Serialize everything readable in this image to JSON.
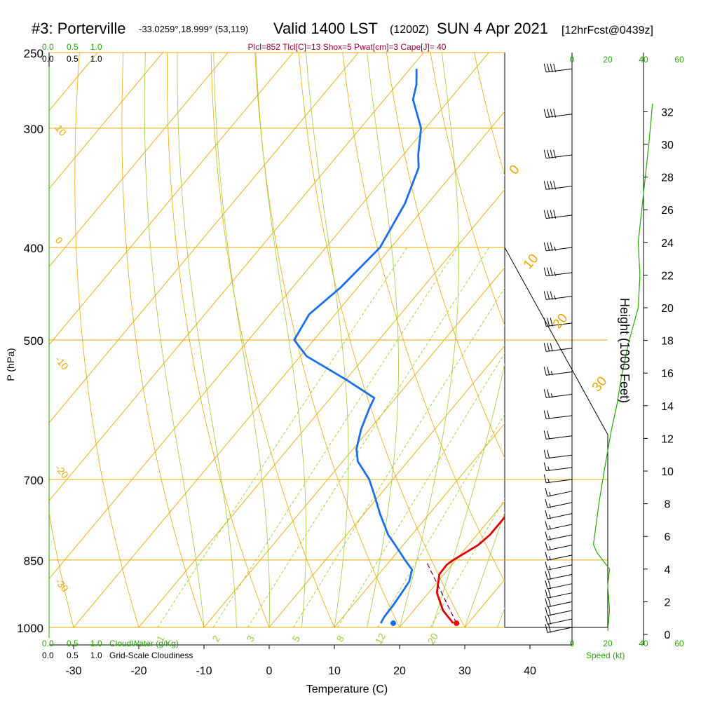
{
  "header": {
    "station": "#3: Porterville",
    "coords": "-33.0259°,18.999° (53,119)",
    "valid": "Valid 1400 LST",
    "zulu": "(1200Z)",
    "date": "SUN 4 Apr 2021",
    "forecast": "[12hrFcst@0439z]"
  },
  "params_line": "Plcl=852 Tlcl[C]=13 Shox=5 Pwat[cm]=3 Cape[J]= 40",
  "colors": {
    "isotherm": "#e8a800",
    "mixing_ratio": "#99cc33",
    "temperature": "#dd0000",
    "dewpoint": "#1a6fe8",
    "parcel": "#6a0030",
    "title_accent": "#990033",
    "scale_green": "#22aa00"
  },
  "chart_data": {
    "type": "line",
    "title": "#3: Porterville",
    "xlabel": "Temperature (C)",
    "ylabel": "P (hPa)",
    "right_axis_label": "Height (1000 Feet)",
    "x_ticks": [
      "-30",
      "-20",
      "-10",
      "0",
      "10",
      "20",
      "30",
      "40"
    ],
    "pressure_levels": [
      "250",
      "300",
      "400",
      "500",
      "700",
      "850",
      "1000"
    ],
    "height_ticks": [
      "0",
      "2",
      "4",
      "6",
      "8",
      "10",
      "12",
      "14",
      "16",
      "18",
      "20",
      "22",
      "24",
      "26",
      "28",
      "30",
      "32"
    ],
    "cloud_scale": [
      "0.0",
      "0.5",
      "1.0"
    ],
    "cloud_water_label": "CloudWater (g/Kg)",
    "cloudiness_label": "Grid-Scale Cloudiness",
    "speed_ticks": [
      "0",
      "20",
      "40",
      "60"
    ],
    "speed_label": "Speed (kt)",
    "mixing_ratio_labels": [
      "1",
      "2",
      "3",
      "5",
      "8",
      "12",
      "20"
    ],
    "isotherm_labels_left": [
      "10",
      "0",
      "-10",
      "-20",
      "-30"
    ],
    "isotherm_labels_right": [
      "0",
      "10",
      "20",
      "30"
    ],
    "series": [
      {
        "name": "Temperature",
        "points": [
          {
            "p": 990,
            "t": 27.7
          },
          {
            "p": 960,
            "t": 24.5
          },
          {
            "p": 920,
            "t": 21.3
          },
          {
            "p": 880,
            "t": 19.3
          },
          {
            "p": 860,
            "t": 19.2
          },
          {
            "p": 850,
            "t": 19.6
          },
          {
            "p": 820,
            "t": 21.5
          },
          {
            "p": 800,
            "t": 22.0
          },
          {
            "p": 760,
            "t": 22.0
          },
          {
            "p": 730,
            "t": 21.4
          },
          {
            "p": 700,
            "t": 20.5
          },
          {
            "p": 650,
            "t": 19.0
          },
          {
            "p": 600,
            "t": 17.4
          },
          {
            "p": 580,
            "t": 16.5
          },
          {
            "p": 550,
            "t": 15.6
          },
          {
            "p": 520,
            "t": 14.3
          },
          {
            "p": 500,
            "t": 13.8
          },
          {
            "p": 480,
            "t": 12.2
          },
          {
            "p": 460,
            "t": 10.4
          },
          {
            "p": 440,
            "t": 8.5
          },
          {
            "p": 420,
            "t": 6.2
          },
          {
            "p": 400,
            "t": 3.8
          },
          {
            "p": 380,
            "t": 1.4
          },
          {
            "p": 360,
            "t": -1.3
          },
          {
            "p": 340,
            "t": -4.2
          },
          {
            "p": 320,
            "t": -7.4
          },
          {
            "p": 300,
            "t": -11.0
          },
          {
            "p": 280,
            "t": -15.3
          },
          {
            "p": 260,
            "t": -20.5
          }
        ]
      },
      {
        "name": "Dewpoint",
        "points": [
          {
            "p": 990,
            "t": 16.6
          },
          {
            "p": 975,
            "t": 16.3
          },
          {
            "p": 950,
            "t": 16.2
          },
          {
            "p": 920,
            "t": 15.9
          },
          {
            "p": 895,
            "t": 15.6
          },
          {
            "p": 870,
            "t": 14.5
          },
          {
            "p": 850,
            "t": 12.2
          },
          {
            "p": 820,
            "t": 8.8
          },
          {
            "p": 800,
            "t": 6.4
          },
          {
            "p": 760,
            "t": 2.4
          },
          {
            "p": 730,
            "t": -0.5
          },
          {
            "p": 700,
            "t": -3.6
          },
          {
            "p": 670,
            "t": -7.7
          },
          {
            "p": 650,
            "t": -9.5
          },
          {
            "p": 620,
            "t": -11.3
          },
          {
            "p": 590,
            "t": -12.7
          },
          {
            "p": 575,
            "t": -13.3
          },
          {
            "p": 550,
            "t": -20.0
          },
          {
            "p": 520,
            "t": -29.0
          },
          {
            "p": 500,
            "t": -33.0
          },
          {
            "p": 470,
            "t": -34.0
          },
          {
            "p": 440,
            "t": -32.6
          },
          {
            "p": 400,
            "t": -31.7
          },
          {
            "p": 360,
            "t": -33.5
          },
          {
            "p": 330,
            "t": -36.0
          },
          {
            "p": 320,
            "t": -37.7
          },
          {
            "p": 300,
            "t": -40.7
          },
          {
            "p": 280,
            "t": -45.6
          },
          {
            "p": 270,
            "t": -47.0
          },
          {
            "p": 260,
            "t": -49.0
          }
        ]
      }
    ],
    "surface_temperature": 28.2,
    "surface_dewpoint": 18.5,
    "cloud_water_profile": [
      {
        "p": 1000,
        "v": 0
      },
      {
        "p": 250,
        "v": 0
      }
    ],
    "wind_speed_profile_kt": [
      {
        "h": 0.2,
        "v": 20
      },
      {
        "h": 1.5,
        "v": 21
      },
      {
        "h": 3.0,
        "v": 20
      },
      {
        "h": 4.0,
        "v": 21
      },
      {
        "h": 5.0,
        "v": 14
      },
      {
        "h": 5.5,
        "v": 12
      },
      {
        "h": 8.0,
        "v": 15
      },
      {
        "h": 10.0,
        "v": 18
      },
      {
        "h": 12.5,
        "v": 22
      },
      {
        "h": 14.0,
        "v": 25
      },
      {
        "h": 16.0,
        "v": 28
      },
      {
        "h": 18.0,
        "v": 32
      },
      {
        "h": 20.0,
        "v": 37
      },
      {
        "h": 22.0,
        "v": 38
      },
      {
        "h": 24.0,
        "v": 37
      },
      {
        "h": 26.0,
        "v": 39
      },
      {
        "h": 28.0,
        "v": 41
      },
      {
        "h": 30.0,
        "v": 43
      },
      {
        "h": 32.5,
        "v": 45
      }
    ],
    "wind_barbs": [
      {
        "p": 260,
        "knots": 40
      },
      {
        "p": 290,
        "knots": 40
      },
      {
        "p": 320,
        "knots": 40
      },
      {
        "p": 345,
        "knots": 40
      },
      {
        "p": 370,
        "knots": 40
      },
      {
        "p": 400,
        "knots": 35
      },
      {
        "p": 425,
        "knots": 35
      },
      {
        "p": 450,
        "knots": 35
      },
      {
        "p": 480,
        "knots": 30
      },
      {
        "p": 510,
        "knots": 30
      },
      {
        "p": 540,
        "knots": 25
      },
      {
        "p": 570,
        "knots": 25
      },
      {
        "p": 600,
        "knots": 20
      },
      {
        "p": 630,
        "knots": 20
      },
      {
        "p": 660,
        "knots": 20
      },
      {
        "p": 680,
        "knots": 15
      },
      {
        "p": 700,
        "knots": 15
      },
      {
        "p": 720,
        "knots": 15
      },
      {
        "p": 740,
        "knots": 15
      },
      {
        "p": 760,
        "knots": 15
      },
      {
        "p": 780,
        "knots": 15
      },
      {
        "p": 800,
        "knots": 15
      },
      {
        "p": 820,
        "knots": 15
      },
      {
        "p": 840,
        "knots": 15
      },
      {
        "p": 860,
        "knots": 15
      },
      {
        "p": 880,
        "knots": 20
      },
      {
        "p": 900,
        "knots": 20
      },
      {
        "p": 920,
        "knots": 20
      },
      {
        "p": 940,
        "knots": 20
      },
      {
        "p": 960,
        "knots": 20
      },
      {
        "p": 980,
        "knots": 20
      },
      {
        "p": 1000,
        "knots": 20
      }
    ]
  }
}
